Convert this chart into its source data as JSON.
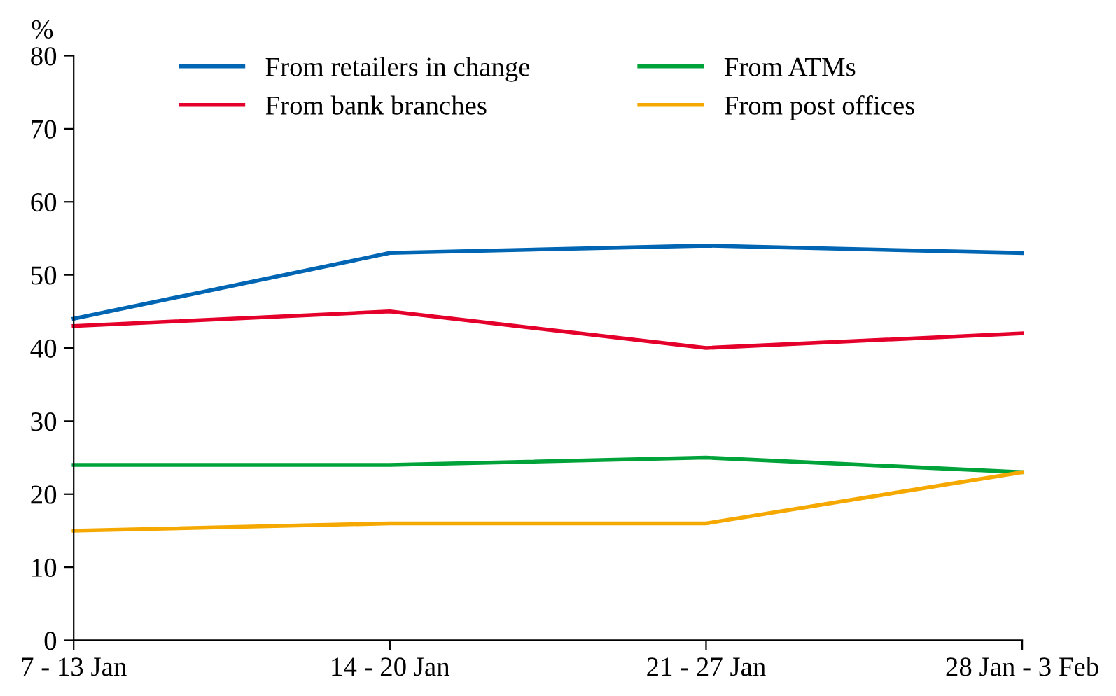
{
  "chart_data": {
    "type": "line",
    "ylabel": "%",
    "categories": [
      "7 - 13 Jan",
      "14 - 20 Jan",
      "21 - 27 Jan",
      "28 Jan - 3 Feb"
    ],
    "series": [
      {
        "name": "From retailers in change",
        "color": "#0066b3",
        "values": [
          44,
          53,
          54,
          53
        ]
      },
      {
        "name": "From bank branches",
        "color": "#e4002b",
        "values": [
          43,
          45,
          40,
          42
        ]
      },
      {
        "name": "From ATMs",
        "color": "#00a23a",
        "values": [
          24,
          24,
          25,
          23
        ]
      },
      {
        "name": "From post offices",
        "color": "#f5a800",
        "values": [
          15,
          16,
          16,
          23
        ]
      }
    ],
    "ylim": [
      0,
      80
    ],
    "yticks": [
      0,
      10,
      20,
      30,
      40,
      50,
      60,
      70,
      80
    ],
    "grid": false,
    "legend": "top",
    "marker": "none",
    "line_style": "solid"
  }
}
